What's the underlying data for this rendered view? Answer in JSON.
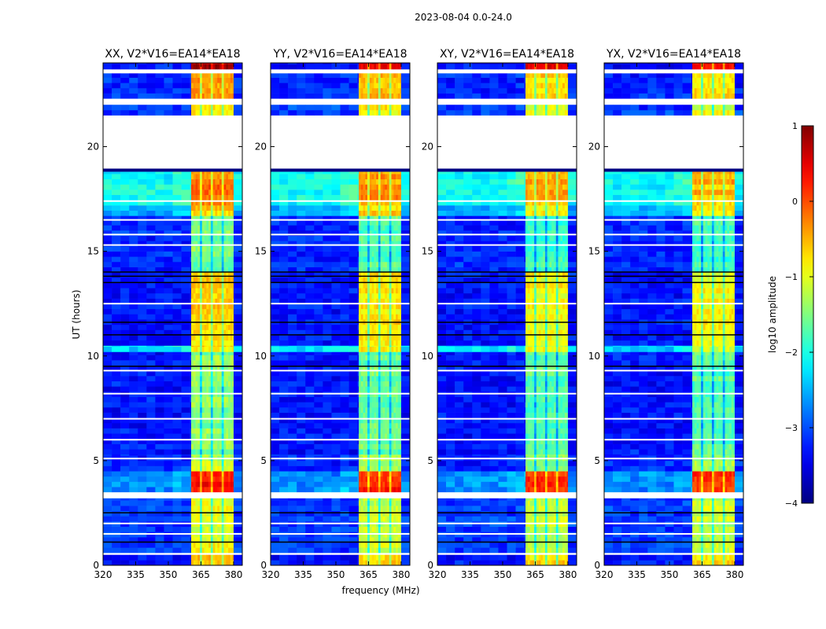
{
  "chart_data": {
    "type": "heatmap",
    "title": "2023-08-04 0.0-24.0",
    "xlabel": "frequency (MHz)",
    "ylabel": "UT (hours)",
    "xlim": [
      320,
      384
    ],
    "ylim": [
      0,
      24
    ],
    "xticks": [
      320,
      335,
      350,
      365,
      380
    ],
    "yticks": [
      0,
      5,
      10,
      15,
      20
    ],
    "panels": [
      {
        "title": "XX, V2*V16=EA14*EA18",
        "offset": 0.15
      },
      {
        "title": "YY, V2*V16=EA14*EA18",
        "offset": 0.0
      },
      {
        "title": "XY, V2*V16=EA14*EA18",
        "offset": -0.1
      },
      {
        "title": "YX, V2*V16=EA14*EA18",
        "offset": -0.1
      }
    ],
    "signal_band_mhz": [
      360.5,
      380
    ],
    "band_dips_mhz": [
      365,
      370,
      375
    ],
    "segments": [
      {
        "ut": [
          0,
          0.5
        ],
        "bg": -3.3,
        "band": -0.6
      },
      {
        "ut": [
          0.5,
          0.6
        ],
        "flag": "blank"
      },
      {
        "ut": [
          0.6,
          3.2
        ],
        "bg": -3.1,
        "band": -1.1
      },
      {
        "ut": [
          3.2,
          3.5
        ],
        "flag": "blank"
      },
      {
        "ut": [
          3.5,
          4.5
        ],
        "bg": -2.7,
        "band": 0.2
      },
      {
        "ut": [
          4.5,
          5.3
        ],
        "bg": -3.2,
        "band": -1.3
      },
      {
        "ut": [
          5.3,
          10.2
        ],
        "bg": -3.3,
        "band": -1.6
      },
      {
        "ut": [
          10.2,
          10.5
        ],
        "bg": -2.3,
        "band": -0.9
      },
      {
        "ut": [
          10.5,
          14.0
        ],
        "bg": -3.3,
        "band": -0.8
      },
      {
        "ut": [
          14.0,
          16.7
        ],
        "bg": -3.2,
        "band": -1.7
      },
      {
        "ut": [
          16.7,
          17.2
        ],
        "bg": -2.5,
        "band": -0.7
      },
      {
        "ut": [
          17.2,
          18.8
        ],
        "bg": -2.1,
        "band": -0.4
      },
      {
        "ut": [
          18.8,
          18.95
        ],
        "flag": "zero"
      },
      {
        "ut": [
          18.95,
          21.5
        ],
        "flag": "blank"
      },
      {
        "ut": [
          21.5,
          22.0
        ],
        "bg": -3.1,
        "band": -0.9
      },
      {
        "ut": [
          22.0,
          22.3
        ],
        "flag": "blank"
      },
      {
        "ut": [
          22.3,
          23.5
        ],
        "bg": -3.2,
        "band": -0.6
      },
      {
        "ut": [
          23.5,
          23.7
        ],
        "flag": "blank"
      },
      {
        "ut": [
          23.7,
          24.0
        ],
        "bg": -3.3,
        "band": 0.6
      }
    ],
    "blank_lines_ut": [
      1.5,
      2.0,
      5.1,
      6.0,
      7.0,
      8.2,
      9.3,
      12.5,
      15.3,
      15.8,
      16.5,
      17.4
    ],
    "zero_lines_ut": [
      1.1,
      2.5,
      9.5,
      11.0,
      11.6,
      13.5,
      13.8,
      14.0
    ],
    "colorbar": {
      "label": "log10 amplitude",
      "range": [
        -4,
        1
      ],
      "ticks": [
        1,
        0,
        -1,
        -2,
        -3,
        -4
      ],
      "cmap": "jet"
    }
  }
}
